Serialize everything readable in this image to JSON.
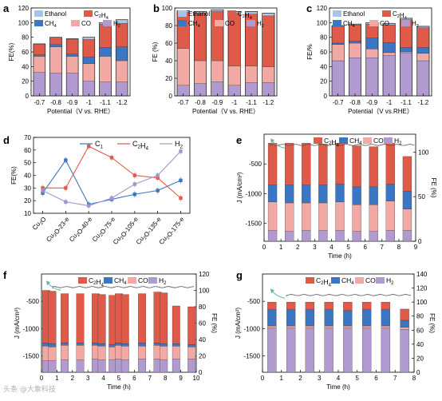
{
  "colors": {
    "ethanol": "#a9c4ea",
    "c2h4": "#e05a4a",
    "ch4": "#3a76c2",
    "co": "#f2a9a4",
    "h2": "#b09ad0",
    "c1_line": "#3a76c2",
    "c2h4_line": "#e05a4a",
    "h2_line": "#a693cc",
    "fe_trace": "#555555",
    "arrow": "#66b39a"
  },
  "chart_data": [
    {
      "id": "a",
      "panel_label": "a",
      "type": "bar",
      "stacked": true,
      "categories": [
        "-0.7",
        "-0.8",
        "-0.9",
        "-1",
        "-1.1",
        "-1.2"
      ],
      "xlabel": "Potential（V vs. RHE）",
      "ylabel": "FE(%)",
      "ylim": [
        0,
        120
      ],
      "yticks": [
        "0",
        "20",
        "40",
        "60",
        "80",
        "100",
        "120"
      ],
      "legend": [
        "Ethanol",
        "C2H4",
        "CH4",
        "CO",
        "H2"
      ],
      "series": [
        {
          "name": "H2",
          "values": [
            32,
            31,
            31,
            20,
            19,
            19
          ]
        },
        {
          "name": "CO",
          "values": [
            22,
            36,
            23,
            24,
            35,
            29
          ]
        },
        {
          "name": "CH4",
          "values": [
            2,
            3,
            3,
            9,
            12,
            19
          ]
        },
        {
          "name": "C2H4",
          "values": [
            14,
            10,
            20,
            24,
            32,
            32
          ]
        },
        {
          "name": "Ethanol",
          "values": [
            1,
            0,
            1,
            3,
            2,
            5
          ]
        }
      ]
    },
    {
      "id": "b",
      "panel_label": "b",
      "type": "bar",
      "stacked": true,
      "categories": [
        "-0.7",
        "-0.8",
        "-0.9",
        "-1",
        "-1.1",
        "-1.2"
      ],
      "xlabel": "Potential（V vs. RHE）",
      "ylabel": "FE (%)",
      "ylim": [
        0,
        100
      ],
      "yticks": [
        "0",
        "20",
        "40",
        "60",
        "80",
        "100"
      ],
      "legend": [
        "Ethanol",
        "C2H4",
        "CH4",
        "CO",
        "H2"
      ],
      "series": [
        {
          "name": "H2",
          "values": [
            12,
            14,
            16,
            12,
            15,
            15
          ]
        },
        {
          "name": "CO",
          "values": [
            42,
            26,
            24,
            22,
            19,
            18
          ]
        },
        {
          "name": "CH4",
          "values": [
            0,
            0,
            0,
            0,
            0,
            0
          ]
        },
        {
          "name": "C2H4",
          "values": [
            41,
            54,
            56,
            60,
            59,
            58
          ]
        },
        {
          "name": "Ethanol",
          "values": [
            2,
            2,
            2,
            2,
            3,
            3
          ]
        }
      ]
    },
    {
      "id": "c",
      "panel_label": "c",
      "type": "bar",
      "stacked": true,
      "categories": [
        "-0.7",
        "-0.8",
        "-0.9",
        "-1",
        "-1.1",
        "-1.2"
      ],
      "xlabel": "Potential（V vs.RHE）",
      "ylabel": "FE/%",
      "ylim": [
        0,
        120
      ],
      "yticks": [
        "0",
        "20",
        "40",
        "60",
        "80",
        "100",
        "120"
      ],
      "legend": [
        "Ethanol",
        "C2H4",
        "CH4",
        "CO",
        "H2"
      ],
      "series": [
        {
          "name": "H2",
          "values": [
            48,
            52,
            52,
            55,
            58,
            48
          ]
        },
        {
          "name": "CO",
          "values": [
            22,
            20,
            12,
            4,
            2,
            10
          ]
        },
        {
          "name": "CH4",
          "values": [
            2,
            3,
            15,
            14,
            6,
            8
          ]
        },
        {
          "name": "C2H4",
          "values": [
            23,
            22,
            19,
            24,
            38,
            27
          ]
        },
        {
          "name": "Ethanol",
          "values": [
            1,
            1,
            2,
            2,
            2,
            2
          ]
        }
      ]
    },
    {
      "id": "d",
      "panel_label": "d",
      "type": "line",
      "categories": [
        "Cu2O",
        "Cu2O-23-e",
        "Cu2O-40-e",
        "Cu2O-75-e",
        "Cu2O-105-e",
        "Cu2O-135-e",
        "Cu2O-175-e"
      ],
      "ylabel": "FE(%)",
      "ylim": [
        10,
        70
      ],
      "yticks": [
        "10",
        "20",
        "30",
        "40",
        "50",
        "60",
        "70"
      ],
      "legend": [
        "C1",
        "C2H4",
        "H2"
      ],
      "series": [
        {
          "name": "C1",
          "values": [
            26,
            52,
            17,
            21,
            25,
            28,
            36
          ]
        },
        {
          "name": "C2H4",
          "values": [
            30,
            30,
            63,
            54,
            40,
            38,
            22
          ]
        },
        {
          "name": "H2",
          "values": [
            28,
            19,
            16,
            22,
            33,
            40,
            59
          ]
        }
      ]
    },
    {
      "id": "e",
      "panel_label": "e",
      "type": "bar",
      "stacked": true,
      "x": [
        0.5,
        1.5,
        2.5,
        3.5,
        4.5,
        5.5,
        6.5,
        7.5,
        8.5
      ],
      "xlabel": "Time (h)",
      "ylabel": "J (mA/cm²)",
      "ylim": [
        -1800,
        0
      ],
      "yticks": [
        "-1500",
        "-1000",
        "-500"
      ],
      "y2label": "FE (%)",
      "y2lim": [
        0,
        120
      ],
      "y2ticks": [
        "0",
        "50",
        "100"
      ],
      "xticks": [
        "0",
        "1",
        "2",
        "3",
        "4",
        "5",
        "6",
        "7",
        "8",
        "9"
      ],
      "legend": [
        "C2H4",
        "CH4",
        "CO",
        "H2"
      ],
      "series": [
        {
          "name": "H2",
          "values": [
            12,
            11,
            12,
            12,
            12,
            11,
            11,
            12,
            12
          ]
        },
        {
          "name": "CO",
          "values": [
            32,
            32,
            31,
            31,
            32,
            30,
            30,
            33,
            24
          ]
        },
        {
          "name": "CH4",
          "values": [
            19,
            20,
            20,
            20,
            20,
            20,
            20,
            19,
            20
          ]
        },
        {
          "name": "C2H4",
          "values": [
            47,
            47,
            47,
            46,
            46,
            46,
            45,
            46,
            39
          ]
        }
      ],
      "fe_trace_value": 108
    },
    {
      "id": "f",
      "panel_label": "f",
      "type": "bar",
      "stacked": true,
      "x": [
        0.3,
        0.7,
        1.5,
        2.5,
        3.5,
        3.9,
        4.6,
        5.0,
        5.4,
        6.5,
        7.5,
        7.9,
        8.7,
        9.7
      ],
      "xlabel": "Time (h)",
      "ylabel": "J (mA/cm²)",
      "ylim": [
        -1800,
        0
      ],
      "yticks": [
        "-1500",
        "-1000",
        "-500"
      ],
      "y2label": "FE (%)",
      "y2lim": [
        0,
        120
      ],
      "y2ticks": [
        "0",
        "20",
        "40",
        "60",
        "80",
        "100",
        "120"
      ],
      "xticks": [
        "0",
        "1",
        "2",
        "3",
        "4",
        "5",
        "6",
        "7",
        "8",
        "9",
        "10"
      ],
      "legend": [
        "C2H4",
        "CH4",
        "CO",
        "H2"
      ],
      "series": [
        {
          "name": "H2",
          "values": [
            14,
            14,
            15,
            15,
            16,
            15,
            15,
            16,
            15,
            16,
            16,
            15,
            16,
            16
          ]
        },
        {
          "name": "CO",
          "values": [
            18,
            17,
            18,
            18,
            17,
            17,
            16,
            17,
            17,
            16,
            17,
            17,
            16,
            15
          ]
        },
        {
          "name": "CH4",
          "values": [
            4,
            4,
            3,
            3,
            3,
            3,
            3,
            3,
            3,
            4,
            3,
            3,
            3,
            3
          ]
        },
        {
          "name": "C2H4",
          "values": [
            64,
            64,
            60,
            60,
            60,
            60,
            60,
            60,
            60,
            60,
            62,
            62,
            46,
            46
          ]
        }
      ],
      "fe_trace_value": 104
    },
    {
      "id": "g",
      "panel_label": "g",
      "type": "bar",
      "stacked": true,
      "x": [
        0.5,
        1.5,
        2.5,
        3.5,
        4.5,
        5.5,
        6.5,
        7.5
      ],
      "xlabel": "Time (h)",
      "ylabel": "J (mA/cm²)",
      "ylim": [
        -1800,
        0
      ],
      "yticks": [
        "-1500",
        "-1000",
        "-500"
      ],
      "y2label": "FE (%)",
      "y2lim": [
        0,
        140
      ],
      "y2ticks": [
        "0",
        "20",
        "40",
        "60",
        "80",
        "100",
        "120",
        "140"
      ],
      "xticks": [
        "0",
        "1",
        "2",
        "3",
        "4",
        "5",
        "6",
        "7",
        "8"
      ],
      "legend": [
        "C2H4",
        "CH4",
        "CO",
        "H2"
      ],
      "series": [
        {
          "name": "H2",
          "values": [
            63,
            63,
            63,
            63,
            63,
            63,
            63,
            61
          ]
        },
        {
          "name": "CO",
          "values": [
            3,
            3,
            3,
            3,
            3,
            3,
            3,
            3
          ]
        },
        {
          "name": "CH4",
          "values": [
            23,
            23,
            23,
            23,
            22,
            23,
            23,
            10
          ]
        },
        {
          "name": "C2H4",
          "values": [
            11,
            11,
            11,
            11,
            12,
            11,
            11,
            16
          ]
        }
      ],
      "fe_trace_value": 110
    }
  ],
  "watermark": "头条 @大象科技"
}
